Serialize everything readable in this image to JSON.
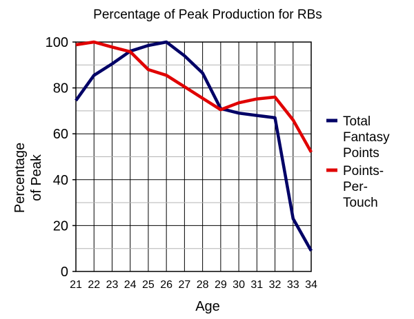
{
  "chart_data": {
    "type": "line",
    "title": "Percentage of Peak Production for RBs",
    "xlabel": "Age",
    "ylabel_lines": [
      "Percentage",
      "of Peak"
    ],
    "x": [
      21,
      22,
      23,
      24,
      25,
      26,
      27,
      28,
      29,
      30,
      31,
      32,
      33,
      34
    ],
    "ylim": [
      0,
      100
    ],
    "yticks": [
      0,
      20,
      40,
      60,
      80,
      100
    ],
    "grid": true,
    "legend_position": "right",
    "series": [
      {
        "name_lines": [
          "Total",
          "Fantasy",
          "Points"
        ],
        "color": "#000066",
        "values": [
          74.5,
          85.5,
          90.5,
          96,
          98.5,
          100,
          94,
          86.5,
          71,
          69,
          68,
          67,
          23,
          9
        ]
      },
      {
        "name_lines": [
          "Points-",
          "Per-",
          "Touch"
        ],
        "color": "#e00000",
        "values": [
          98.8,
          100,
          97.8,
          95.8,
          88,
          85.5,
          80.5,
          75.5,
          70.5,
          73.5,
          75.2,
          76,
          66,
          52
        ]
      }
    ]
  }
}
